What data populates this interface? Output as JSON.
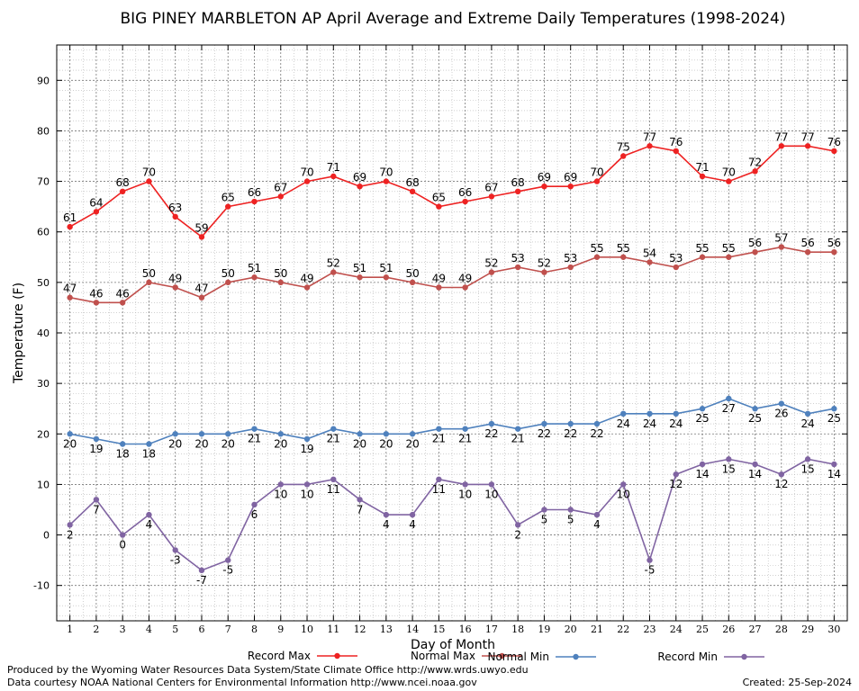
{
  "chart_data": {
    "type": "line",
    "title": "BIG PINEY MARBLETON AP April Average and Extreme Daily Temperatures (1998-2024)",
    "xlabel": "Day of Month",
    "ylabel": "Temperature (F)",
    "x": [
      1,
      2,
      3,
      4,
      5,
      6,
      7,
      8,
      9,
      10,
      11,
      12,
      13,
      14,
      15,
      16,
      17,
      18,
      19,
      20,
      21,
      22,
      23,
      24,
      25,
      26,
      27,
      28,
      29,
      30
    ],
    "xlim": [
      0.5,
      30.5
    ],
    "ylim": [
      -17,
      97
    ],
    "yticks": [
      -10,
      0,
      10,
      20,
      30,
      40,
      50,
      60,
      70,
      80,
      90
    ],
    "grid": true,
    "legend_position": "bottom",
    "series": [
      {
        "name": "Record Max",
        "color": "#ee2222",
        "label_pos": "above",
        "values": [
          61,
          64,
          68,
          70,
          63,
          59,
          65,
          66,
          67,
          70,
          71,
          69,
          70,
          68,
          65,
          66,
          67,
          68,
          69,
          69,
          70,
          75,
          77,
          76,
          71,
          70,
          72,
          77,
          77,
          76
        ]
      },
      {
        "name": "Normal Max",
        "color": "#c0504d",
        "label_pos": "above",
        "values": [
          47,
          46,
          46,
          50,
          49,
          47,
          50,
          51,
          50,
          49,
          52,
          51,
          51,
          50,
          49,
          49,
          52,
          53,
          52,
          53,
          55,
          55,
          54,
          53,
          55,
          55,
          56,
          57,
          56,
          56
        ]
      },
      {
        "name": "Normal Min",
        "color": "#4f81bd",
        "label_pos": "below",
        "values": [
          20,
          19,
          18,
          18,
          20,
          20,
          20,
          21,
          20,
          19,
          21,
          20,
          20,
          20,
          21,
          21,
          22,
          21,
          22,
          22,
          22,
          24,
          24,
          24,
          25,
          27,
          25,
          26,
          24,
          25
        ]
      },
      {
        "name": "Record Min",
        "color": "#8064a2",
        "label_pos": "below",
        "values": [
          2,
          7,
          0,
          4,
          -3,
          -7,
          -5,
          6,
          10,
          10,
          11,
          7,
          4,
          4,
          11,
          10,
          10,
          2,
          5,
          5,
          4,
          10,
          -5,
          12,
          14,
          15,
          14,
          12,
          15,
          14
        ]
      }
    ]
  },
  "footer": {
    "produced_by": "Produced by the Wyoming Water Resources Data System/State Climate Office http://www.wrds.uwyo.edu",
    "courtesy": "Data courtesy NOAA National Centers for Environmental Information http://www.ncei.noaa.gov",
    "created": "Created:  25-Sep-2024"
  }
}
